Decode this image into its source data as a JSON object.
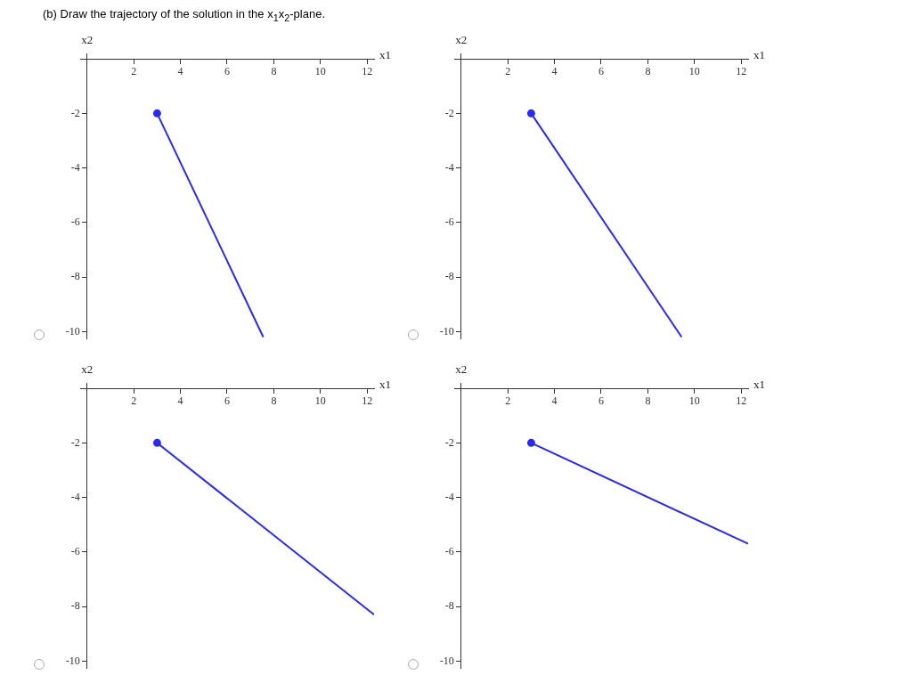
{
  "chart_data": [
    {
      "type": "line",
      "title": "(b) Draw the trajectory of the solution in the x$_{1}$x$_{2}$-plane.",
      "xlabel": "x1",
      "ylabel": "x2",
      "xlim": [
        -0.3,
        12.3
      ],
      "ylim": [
        -10.25,
        0.2
      ],
      "xticks": [
        2,
        4,
        6,
        8,
        10,
        12
      ],
      "yticks": [
        -2,
        -4,
        -6,
        -8,
        -10
      ],
      "grid": false,
      "legend": false,
      "series": [
        {
          "type": "line",
          "color": "#2a2af0",
          "marker": "none",
          "x": [
            3,
            7.55
          ],
          "values": [
            -2,
            -10.2
          ]
        },
        {
          "type": "scatter",
          "color": "#2a2af0",
          "marker": "circle",
          "x": [
            3
          ],
          "values": [
            -2
          ]
        }
      ]
    },
    {
      "type": "line",
      "xlabel": "x1",
      "ylabel": "x2",
      "xlim": [
        -0.3,
        12.3
      ],
      "ylim": [
        -10.25,
        0.2
      ],
      "xticks": [
        2,
        4,
        6,
        8,
        10,
        12
      ],
      "yticks": [
        -2,
        -4,
        -6,
        -8,
        -10
      ],
      "grid": false,
      "legend": false,
      "series": [
        {
          "type": "line",
          "color": "#2a2af0",
          "marker": "none",
          "x": [
            3,
            9.45
          ],
          "values": [
            -2,
            -10.2
          ]
        },
        {
          "type": "scatter",
          "color": "#2a2af0",
          "marker": "circle",
          "x": [
            3
          ],
          "values": [
            -2
          ]
        }
      ]
    },
    {
      "type": "line",
      "xlabel": "x1",
      "ylabel": "x2",
      "xlim": [
        -0.3,
        12.3
      ],
      "ylim": [
        -10.25,
        0.2
      ],
      "xticks": [
        2,
        4,
        6,
        8,
        10,
        12
      ],
      "yticks": [
        -2,
        -4,
        -6,
        -8,
        -10
      ],
      "grid": false,
      "legend": false,
      "series": [
        {
          "type": "line",
          "color": "#2a2af0",
          "marker": "none",
          "x": [
            3,
            12.3
          ],
          "values": [
            -2,
            -8.3
          ]
        },
        {
          "type": "scatter",
          "color": "#2a2af0",
          "marker": "circle",
          "x": [
            3
          ],
          "values": [
            -2
          ]
        }
      ]
    },
    {
      "type": "line",
      "xlabel": "x1",
      "ylabel": "x2",
      "xlim": [
        -0.3,
        12.3
      ],
      "ylim": [
        -10.25,
        0.2
      ],
      "xticks": [
        2,
        4,
        6,
        8,
        10,
        12
      ],
      "yticks": [
        -2,
        -4,
        -6,
        -8,
        -10
      ],
      "grid": false,
      "legend": false,
      "series": [
        {
          "type": "line",
          "color": "#2a2af0",
          "marker": "none",
          "x": [
            3,
            12.3
          ],
          "values": [
            -2,
            -5.7
          ]
        },
        {
          "type": "scatter",
          "color": "#2a2af0",
          "marker": "circle",
          "x": [
            3
          ],
          "values": [
            -2
          ]
        }
      ]
    }
  ]
}
